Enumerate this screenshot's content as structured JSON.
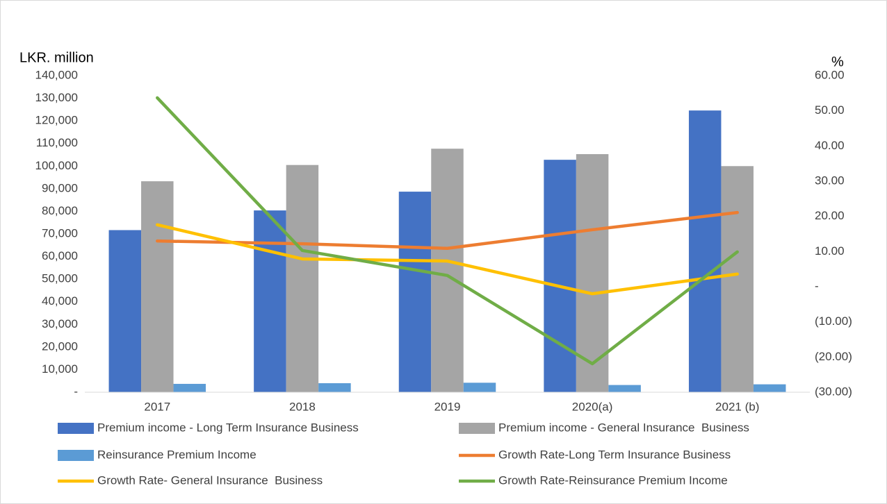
{
  "chart_data": {
    "type": "bar",
    "ylabel": "LKR. million",
    "y2label": "%",
    "categories": [
      "2017",
      "2018",
      "2019",
      "2020(a)",
      "2021 (b)"
    ],
    "series": [
      {
        "name": "Premium income - Long Term Insurance Business",
        "type": "bar",
        "color": "#4472c4",
        "values": [
          71700,
          80400,
          88700,
          102800,
          124600
        ]
      },
      {
        "name": "Premium income - General Insurance  Business",
        "type": "bar",
        "color": "#a5a5a5",
        "values": [
          93300,
          100500,
          107700,
          105300,
          100000
        ]
      },
      {
        "name": "Reinsurance Premium Income",
        "type": "bar",
        "color": "#5b9bd5",
        "values": [
          3700,
          4000,
          4200,
          3200,
          3500
        ]
      },
      {
        "name": "Growth Rate-Long Term Insurance Business",
        "type": "line",
        "axis": "y2",
        "color": "#ed7d31",
        "values": [
          13.0,
          12.2,
          10.9,
          16.2,
          21.1
        ]
      },
      {
        "name": "Growth Rate- General Insurance  Business",
        "type": "line",
        "axis": "y2",
        "color": "#ffc000",
        "values": [
          17.6,
          7.9,
          7.3,
          -2.0,
          3.6
        ]
      },
      {
        "name": "Growth Rate-Reinsurance Premium Income",
        "type": "line",
        "axis": "y2",
        "color": "#70ad47",
        "values": [
          53.7,
          10.3,
          3.2,
          -21.9,
          9.9
        ]
      }
    ],
    "ylim": [
      0,
      140000
    ],
    "yticks": [
      {
        "value": 0,
        "label": "-"
      },
      {
        "value": 10000,
        "label": "10,000"
      },
      {
        "value": 20000,
        "label": "20,000"
      },
      {
        "value": 30000,
        "label": "30,000"
      },
      {
        "value": 40000,
        "label": "40,000"
      },
      {
        "value": 50000,
        "label": "50,000"
      },
      {
        "value": 60000,
        "label": "60,000"
      },
      {
        "value": 70000,
        "label": "70,000"
      },
      {
        "value": 80000,
        "label": "80,000"
      },
      {
        "value": 90000,
        "label": "90,000"
      },
      {
        "value": 100000,
        "label": "100,000"
      },
      {
        "value": 110000,
        "label": "110,000"
      },
      {
        "value": 120000,
        "label": "120,000"
      },
      {
        "value": 130000,
        "label": "130,000"
      },
      {
        "value": 140000,
        "label": "140,000"
      }
    ],
    "y2lim": [
      -30,
      60
    ],
    "y2ticks": [
      {
        "value": -30,
        "label": "(30.00)"
      },
      {
        "value": -20,
        "label": "(20.00)"
      },
      {
        "value": -10,
        "label": "(10.00)"
      },
      {
        "value": 0,
        "label": "-"
      },
      {
        "value": 10,
        "label": "10.00"
      },
      {
        "value": 20,
        "label": "20.00"
      },
      {
        "value": 30,
        "label": "30.00"
      },
      {
        "value": 40,
        "label": "40.00"
      },
      {
        "value": 50,
        "label": "50.00"
      },
      {
        "value": 60,
        "label": "60.00"
      }
    ],
    "legend": "bottom"
  }
}
